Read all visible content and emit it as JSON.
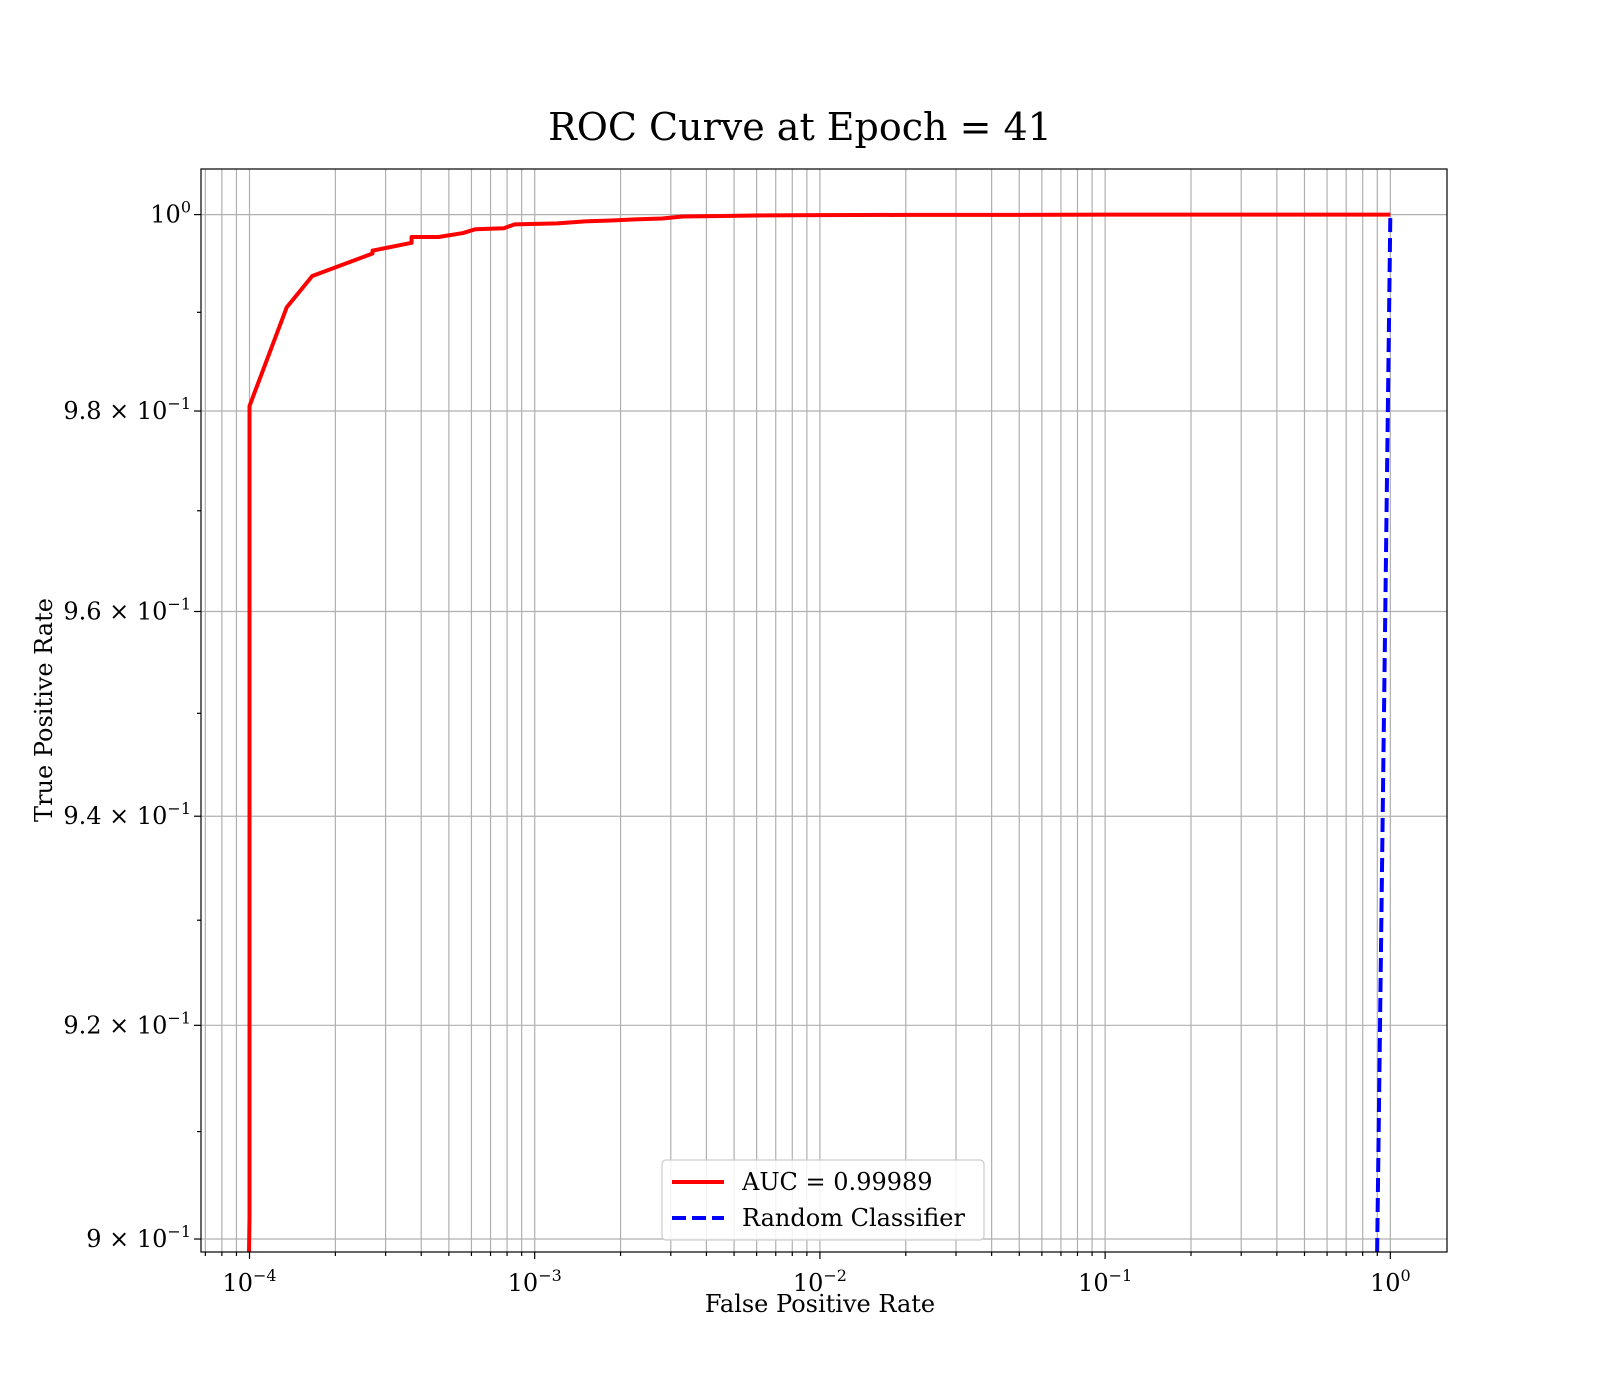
{
  "chart_data": {
    "type": "line",
    "title": "ROC Curve at Epoch = 41",
    "xlabel": "False Positive Rate",
    "ylabel": "True Positive Rate",
    "xscale": "log",
    "yscale": "log",
    "xlim": [
      6.76e-05,
      1.58
    ],
    "ylim": [
      0.8988,
      1.0047
    ],
    "grid": "major and minor",
    "legend_position": "lower center",
    "x_ticks": [
      {
        "value": 0.0001,
        "base": "10",
        "exp": "−4"
      },
      {
        "value": 0.001,
        "base": "10",
        "exp": "−3"
      },
      {
        "value": 0.01,
        "base": "10",
        "exp": "−2"
      },
      {
        "value": 0.1,
        "base": "10",
        "exp": "−1"
      },
      {
        "value": 1,
        "base": "10",
        "exp": "0"
      }
    ],
    "y_ticks": [
      {
        "value": 0.9,
        "base": "9 × 10",
        "exp": "−1"
      },
      {
        "value": 0.92,
        "base": "9.2 × 10",
        "exp": "−1"
      },
      {
        "value": 0.94,
        "base": "9.4 × 10",
        "exp": "−1"
      },
      {
        "value": 0.96,
        "base": "9.6 × 10",
        "exp": "−1"
      },
      {
        "value": 0.98,
        "base": "9.8 × 10",
        "exp": "−1"
      },
      {
        "value": 1,
        "base": "10",
        "exp": "0"
      }
    ],
    "series": [
      {
        "name": "AUC = 0.99989",
        "color": "#ff0000",
        "style": "solid",
        "points": [
          [
            9.96e-05,
            0.8988
          ],
          [
            0.0001,
            0.902
          ],
          [
            0.0001,
            0.9805
          ],
          [
            0.000135,
            0.9905
          ],
          [
            0.000166,
            0.9937
          ],
          [
            0.00027,
            0.996
          ],
          [
            0.00027,
            0.9963
          ],
          [
            0.00037,
            0.9971
          ],
          [
            0.00037,
            0.9977
          ],
          [
            0.00046,
            0.9977
          ],
          [
            0.00056,
            0.9981
          ],
          [
            0.00062,
            0.9985
          ],
          [
            0.00078,
            0.9986
          ],
          [
            0.00085,
            0.999
          ],
          [
            0.0012,
            0.9991
          ],
          [
            0.0015,
            0.9993
          ],
          [
            0.0019,
            0.9994
          ],
          [
            0.0022,
            0.9995
          ],
          [
            0.0028,
            0.9996
          ],
          [
            0.0033,
            0.9998
          ],
          [
            0.0045,
            0.99985
          ],
          [
            0.0065,
            0.99992
          ],
          [
            0.01,
            0.99994
          ],
          [
            0.02,
            0.99997
          ],
          [
            0.05,
            0.99997
          ],
          [
            0.1,
            1.0
          ],
          [
            1.0,
            1.0
          ]
        ]
      },
      {
        "name": "Random Classifier",
        "color": "#0000ff",
        "style": "dashed",
        "points": [
          [
            0.8988,
            0.8988
          ],
          [
            0.95,
            0.95
          ],
          [
            1.0,
            1.0
          ]
        ]
      }
    ]
  }
}
